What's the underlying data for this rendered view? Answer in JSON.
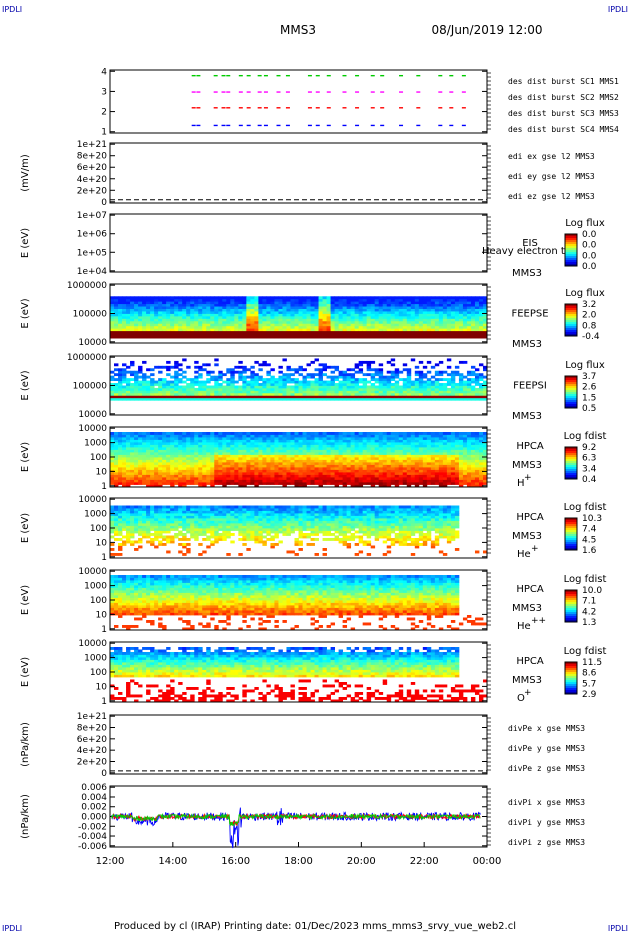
{
  "header": {
    "corner_left": "IPDLI",
    "corner_right": "IPDLI",
    "title_left": "MMS3",
    "title_right": "08/Jun/2019 12:00"
  },
  "footer": {
    "corner_left": "IPDLI",
    "corner_right": "IPDLI",
    "text": "Produced by cl (IRAP)   Printing date: 01/Dec/2023   mms_mms3_srvy_vue_web2.cl"
  },
  "chart_data": {
    "type": "heatmap",
    "x_axis": {
      "ticks": [
        "12:00",
        "14:00",
        "16:00",
        "18:00",
        "20:00",
        "22:00",
        "00:00"
      ],
      "range_hours": [
        12,
        24
      ]
    },
    "panels": [
      {
        "id": "des-dist",
        "kind": "bursts",
        "ylabel": "",
        "yticks": [
          "4",
          "3",
          "2",
          "1"
        ],
        "series": [
          {
            "name": "des dist burst SC1 MMS1",
            "color": "#0000ff",
            "row": 1
          },
          {
            "name": "des dist burst SC2 MMS2",
            "color": "#ff00ff",
            "row": 3
          },
          {
            "name": "des dist burst SC3 MMS3",
            "color": "#ff0000",
            "row": 2
          },
          {
            "name": "des dist burst SC4 MMS4",
            "color": "#00cc00",
            "row": 4
          }
        ],
        "bursts_hours": [
          14.6,
          14.75,
          15.3,
          15.55,
          15.7,
          16.1,
          16.35,
          16.7,
          16.9,
          17.3,
          17.6,
          18.3,
          18.55,
          18.9,
          19.4,
          19.8,
          20.3,
          20.6,
          21.2,
          21.75,
          22.45,
          22.8,
          23.2
        ]
      },
      {
        "id": "edi-e",
        "kind": "empty-line",
        "ylabel": "(mV/m)",
        "yticks": [
          "1e+21",
          "8e+20",
          "6e+20",
          "4e+20",
          "2e+20",
          "0"
        ],
        "series": [
          {
            "name": "edi ex gse l2 MMS3",
            "color": "#ff0000"
          },
          {
            "name": "edi ey gse l2 MMS3",
            "color": "#00cc00"
          },
          {
            "name": "edi ez gse l2 MMS3",
            "color": "#0000ff"
          }
        ]
      },
      {
        "id": "eis",
        "kind": "empty-spectro",
        "ylabel": "E (eV)",
        "yticks": [
          "1e+07",
          "1e+06",
          "1e+05",
          "1e+04"
        ],
        "instrument": "EIS",
        "overlay": "Heavy electron to",
        "spacecraft": "MMS3",
        "colorbar": {
          "title": "Log flux",
          "ticks": [
            "0.0",
            "0.0",
            "0.0",
            "0.0"
          ]
        }
      },
      {
        "id": "feepse",
        "kind": "spectro",
        "pattern": "feepse",
        "ylabel": "E (eV)",
        "yticks": [
          "1000000",
          "100000",
          "10000"
        ],
        "instrument": "FEEPSE",
        "spacecraft": "MMS3",
        "colorbar": {
          "title": "Log flux",
          "ticks": [
            "3.2",
            "2.0",
            "0.8",
            "-0.4"
          ]
        }
      },
      {
        "id": "feepsi",
        "kind": "spectro",
        "pattern": "feepsi",
        "ylabel": "E (eV)",
        "yticks": [
          "1000000",
          "100000",
          "10000"
        ],
        "instrument": "FEEPSI",
        "spacecraft": "MMS3",
        "colorbar": {
          "title": "Log flux",
          "ticks": [
            "3.7",
            "2.6",
            "1.5",
            "0.5"
          ]
        }
      },
      {
        "id": "hpca-h",
        "kind": "spectro",
        "pattern": "hpca-h",
        "ylabel": "E (eV)",
        "yticks": [
          "10000",
          "1000",
          "100",
          "10",
          "1"
        ],
        "instrument": "HPCA",
        "spacecraft": "MMS3",
        "species": "H",
        "charge": "+",
        "colorbar": {
          "title": "Log fdist",
          "ticks": [
            "9.2",
            "6.3",
            "3.4",
            "0.4"
          ]
        }
      },
      {
        "id": "hpca-he",
        "kind": "spectro",
        "pattern": "hpca-he",
        "ylabel": "E (eV)",
        "yticks": [
          "10000",
          "1000",
          "100",
          "10",
          "1"
        ],
        "instrument": "HPCA",
        "spacecraft": "MMS3",
        "species": "He",
        "charge": "+",
        "colorbar": {
          "title": "Log fdist",
          "ticks": [
            "10.3",
            "7.4",
            "4.5",
            "1.6"
          ]
        }
      },
      {
        "id": "hpca-he2",
        "kind": "spectro",
        "pattern": "hpca-he2",
        "ylabel": "E (eV)",
        "yticks": [
          "10000",
          "1000",
          "100",
          "10",
          "1"
        ],
        "instrument": "HPCA",
        "spacecraft": "MMS3",
        "species": "He",
        "charge": "++",
        "colorbar": {
          "title": "Log fdist",
          "ticks": [
            "10.0",
            "7.1",
            "4.2",
            "1.3"
          ]
        }
      },
      {
        "id": "hpca-o",
        "kind": "spectro",
        "pattern": "hpca-o",
        "ylabel": "E (eV)",
        "yticks": [
          "10000",
          "1000",
          "100",
          "10",
          "1"
        ],
        "instrument": "HPCA",
        "spacecraft": "MMS3",
        "species": "O",
        "charge": "+",
        "colorbar": {
          "title": "Log fdist",
          "ticks": [
            "11.5",
            "8.6",
            "5.7",
            "2.9"
          ]
        }
      },
      {
        "id": "divpe",
        "kind": "empty-line",
        "ylabel": "(nPa/km)",
        "yticks": [
          "1e+21",
          "8e+20",
          "6e+20",
          "4e+20",
          "2e+20",
          "0"
        ],
        "series": [
          {
            "name": "divPe x gse MMS3",
            "color": "#ff0000"
          },
          {
            "name": "divPe y gse MMS3",
            "color": "#00cc00"
          },
          {
            "name": "divPe z gse MMS3",
            "color": "#0000ff"
          }
        ]
      },
      {
        "id": "divpi",
        "kind": "line",
        "ylabel": "(nPa/km)",
        "yticks": [
          "0.006",
          "0.004",
          "0.002",
          "0.000",
          "-0.002",
          "-0.004",
          "-0.006"
        ],
        "ylim": [
          -0.007,
          0.007
        ],
        "series": [
          {
            "name": "divPi x gse MMS3",
            "color": "#ff0000"
          },
          {
            "name": "divPi y gse MMS3",
            "color": "#00cc00"
          },
          {
            "name": "divPi z gse MMS3",
            "color": "#0000ff"
          }
        ]
      }
    ]
  }
}
